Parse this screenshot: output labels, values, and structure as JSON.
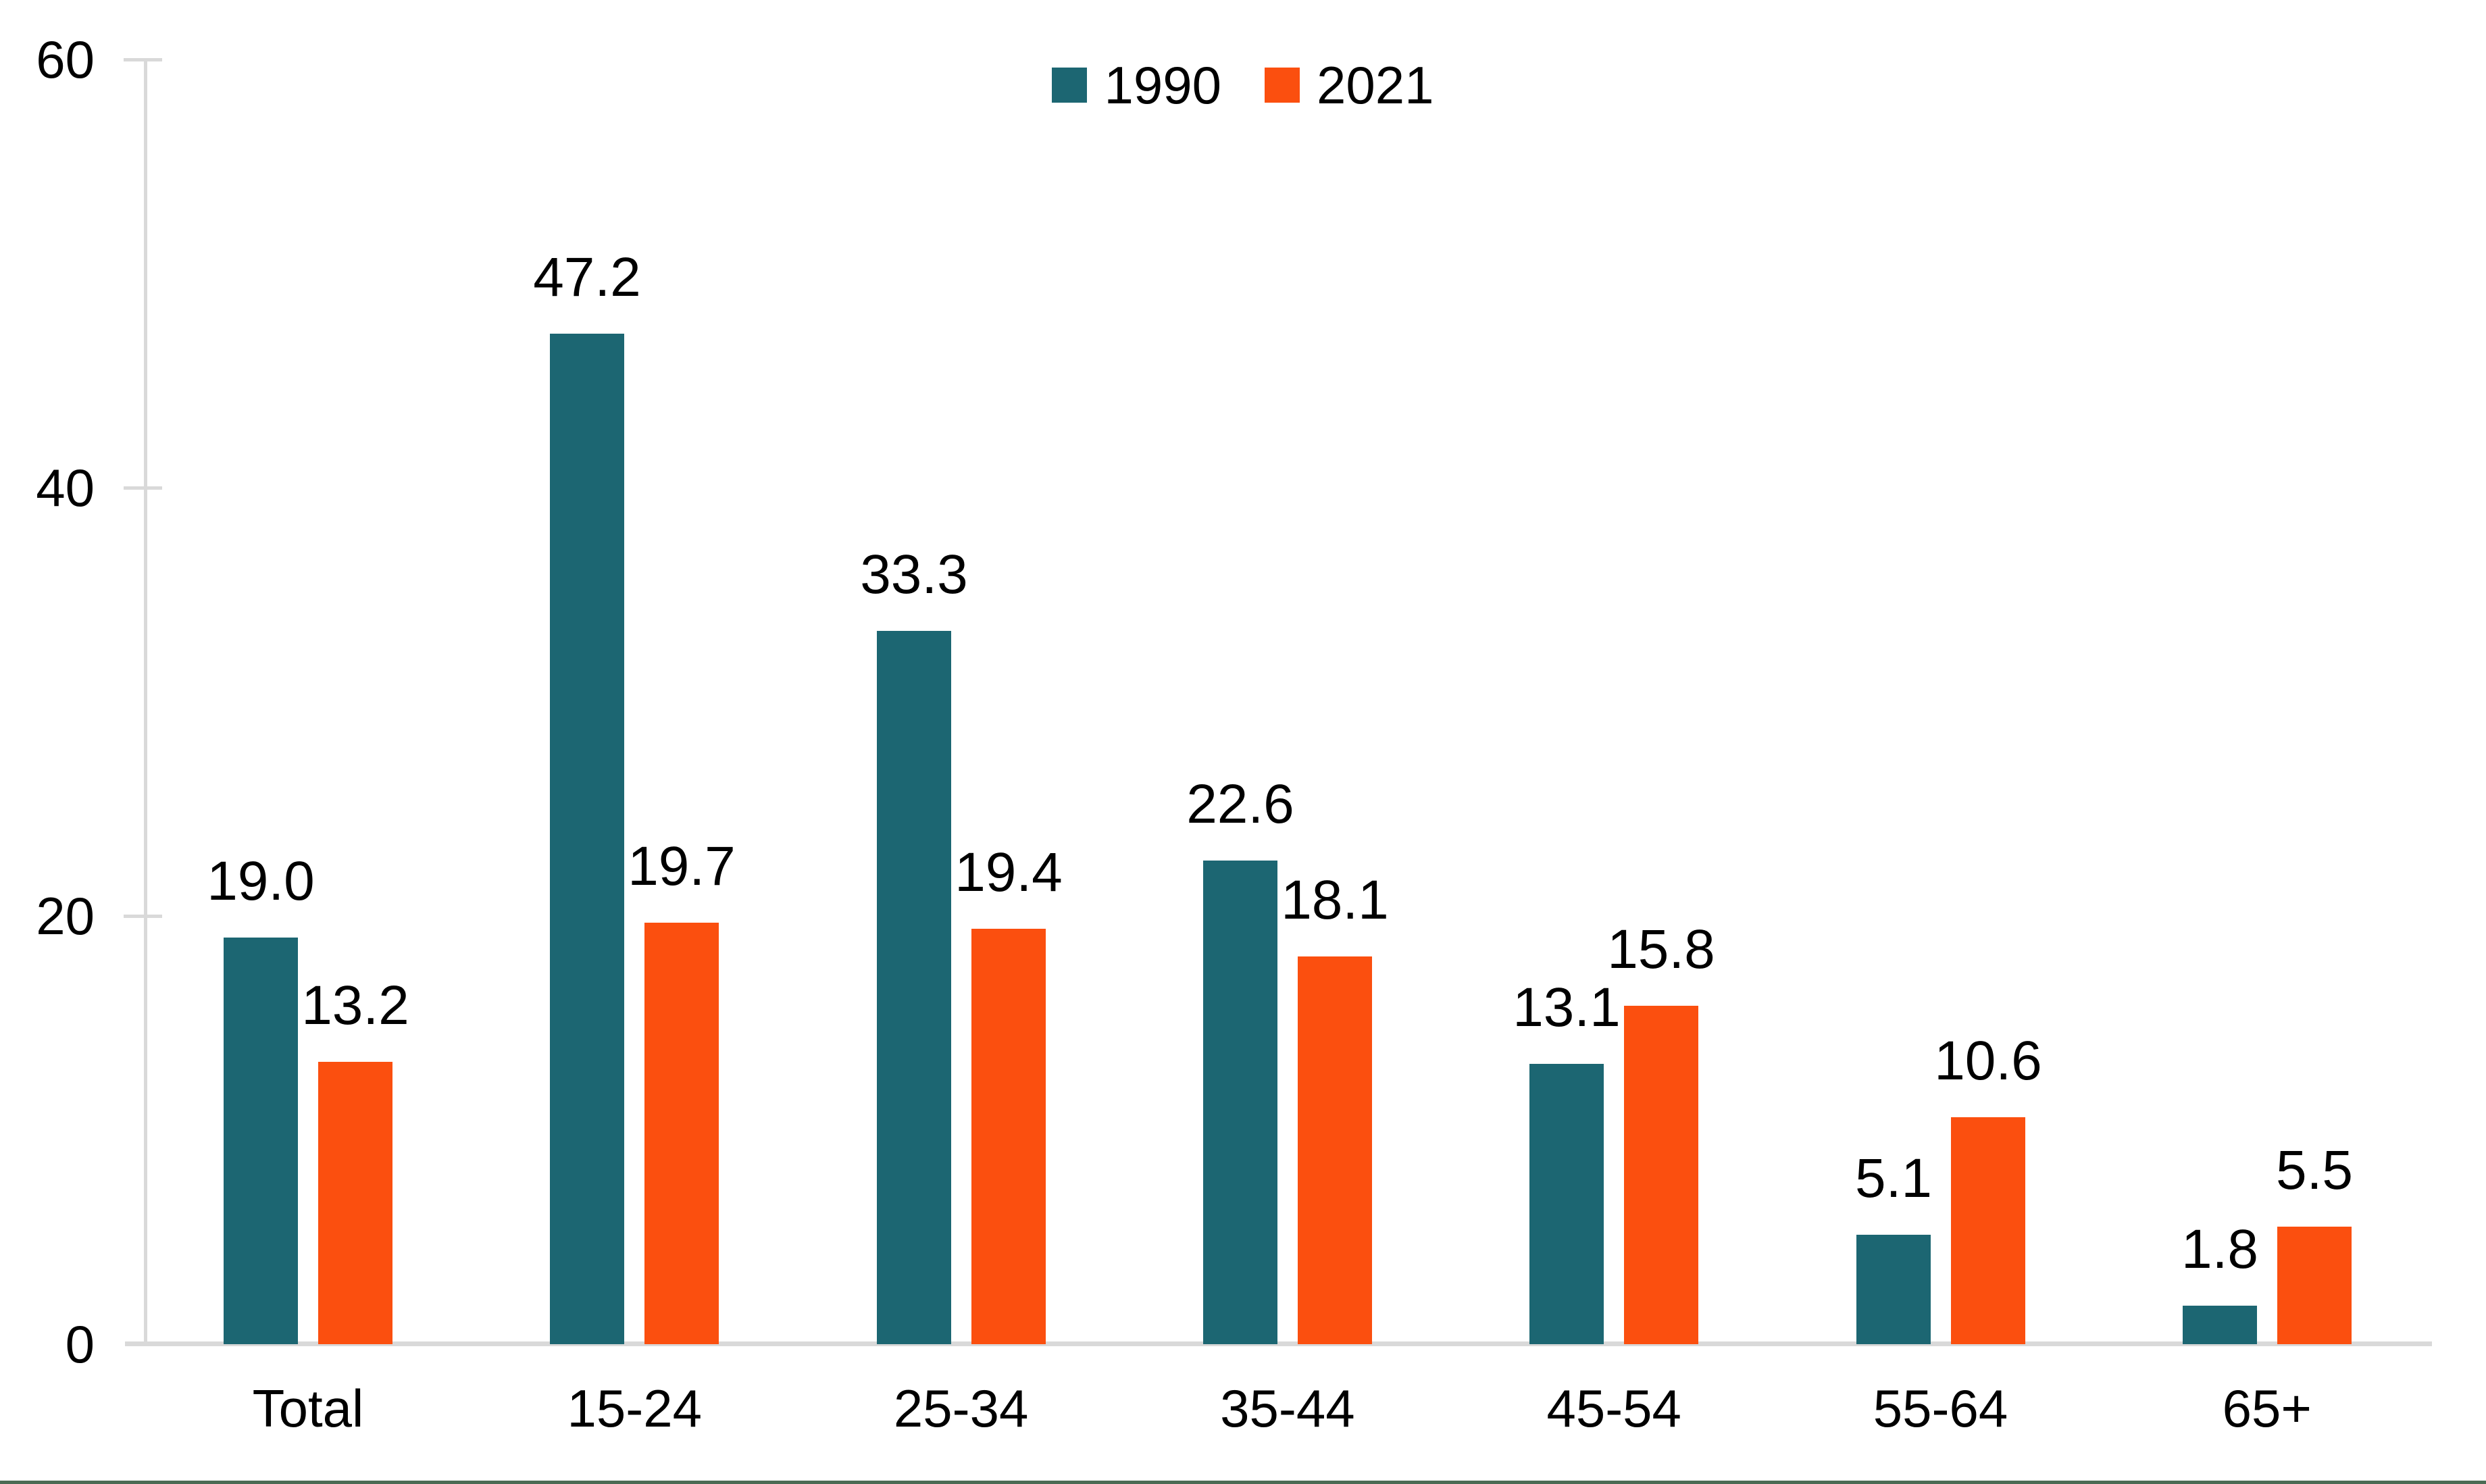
{
  "chart_data": {
    "type": "bar",
    "title": "",
    "categories": [
      "Total",
      "15-24",
      "25-34",
      "35-44",
      "45-54",
      "55-64",
      "65+"
    ],
    "series": [
      {
        "name": "1990",
        "color": "#1C6672",
        "values": [
          19.0,
          47.2,
          33.3,
          22.6,
          13.1,
          5.1,
          1.8
        ]
      },
      {
        "name": "2021",
        "color": "#FB4F0F",
        "values": [
          13.2,
          19.7,
          19.4,
          18.1,
          15.8,
          10.6,
          5.5
        ]
      }
    ],
    "value_labels": {
      "1990": [
        "19.0",
        "47.2",
        "33.3",
        "22.6",
        "13.1",
        "5.1",
        "1.8"
      ],
      "2021": [
        "13.2",
        "19.7",
        "19.4",
        "18.1",
        "15.8",
        "10.6",
        "5.5"
      ]
    },
    "xlabel": "",
    "ylabel": "",
    "ylim": [
      0,
      60
    ],
    "yticks": [
      0,
      20,
      40,
      60
    ],
    "grid": false,
    "legend_position": "top-center",
    "axis_color": "#D9D9D9",
    "text_color": "#000000",
    "background_color": "#FFFFFF",
    "bottom_border_color": "#4B6B54"
  }
}
